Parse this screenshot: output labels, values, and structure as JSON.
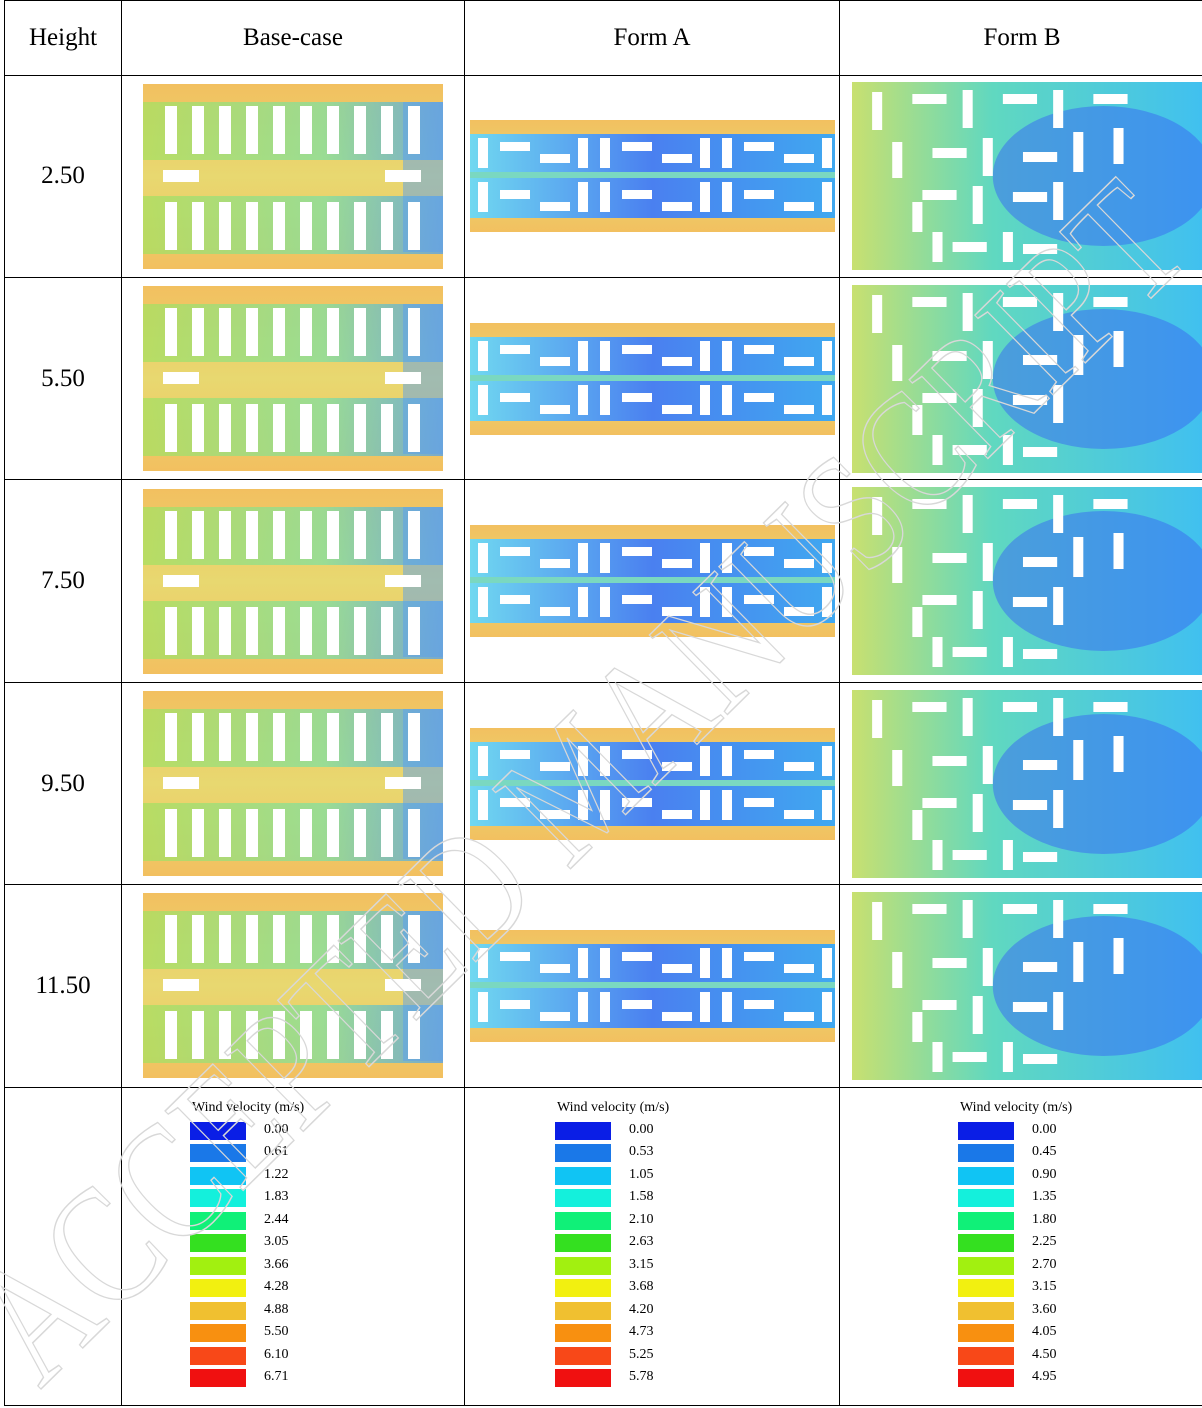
{
  "table": {
    "header": [
      "Height",
      "Base-case",
      "Form A",
      "Form B"
    ],
    "rows": [
      "2.50",
      "5.50",
      "7.50",
      "9.50",
      "11.50"
    ],
    "legends": [
      {
        "title": "Wind velocity (m/s)",
        "values": [
          "0.00",
          "0.61",
          "1.22",
          "1.83",
          "2.44",
          "3.05",
          "3.66",
          "4.28",
          "4.88",
          "5.50",
          "6.10",
          "6.71"
        ]
      },
      {
        "title": "Wind velocity (m/s)",
        "values": [
          "0.00",
          "0.53",
          "1.05",
          "1.58",
          "2.10",
          "2.63",
          "3.15",
          "3.68",
          "4.20",
          "4.73",
          "5.25",
          "5.78"
        ]
      },
      {
        "title": "Wind velocity (m/s)",
        "values": [
          "0.00",
          "0.45",
          "0.90",
          "1.35",
          "1.80",
          "2.25",
          "2.70",
          "3.15",
          "3.60",
          "4.05",
          "4.50",
          "4.95"
        ]
      }
    ]
  },
  "watermark": "ACCEPTED MANUSCRIPT"
}
